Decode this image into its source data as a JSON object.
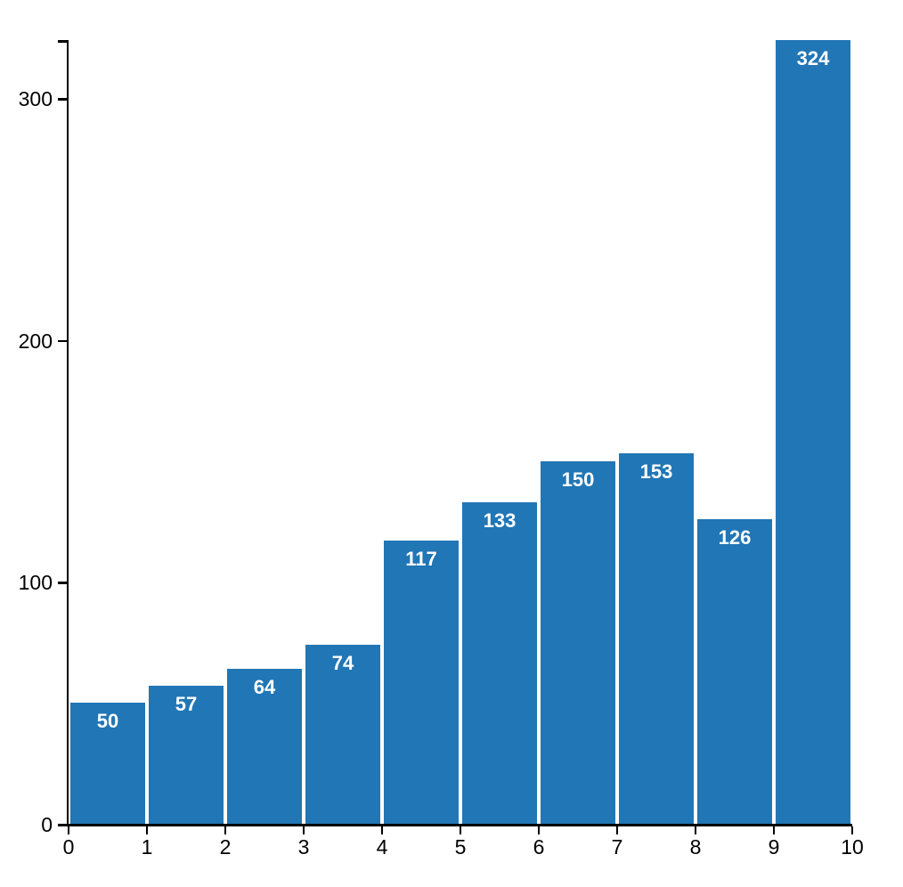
{
  "chart_data": {
    "type": "bar",
    "title": "",
    "xlabel": "",
    "ylabel": "",
    "categories": [
      "0-1",
      "1-2",
      "2-3",
      "3-4",
      "4-5",
      "5-6",
      "6-7",
      "7-8",
      "8-9",
      "9-10"
    ],
    "x_bins": [
      0,
      1,
      2,
      3,
      4,
      5,
      6,
      7,
      8,
      9,
      10
    ],
    "values": [
      50,
      57,
      64,
      74,
      117,
      133,
      150,
      153,
      126,
      324
    ],
    "bar_labels": [
      "50",
      "57",
      "64",
      "74",
      "117",
      "133",
      "150",
      "153",
      "126",
      "324"
    ],
    "xlim": [
      0,
      10
    ],
    "ylim": [
      0,
      324
    ],
    "xticks": [
      "0",
      "1",
      "2",
      "3",
      "4",
      "5",
      "6",
      "7",
      "8",
      "9",
      "10"
    ],
    "xtick_values": [
      0,
      1,
      2,
      3,
      4,
      5,
      6,
      7,
      8,
      9,
      10
    ],
    "yticks": [
      "0",
      "100",
      "200",
      "300"
    ],
    "ytick_values": [
      0,
      100,
      200,
      300
    ],
    "grid": false,
    "legend": null,
    "colors": {
      "bar_fill": "#2176b5",
      "bar_value_text": "#ffffff",
      "axis": "#000000",
      "tick_text": "#000000",
      "background": "#ffffff"
    }
  }
}
